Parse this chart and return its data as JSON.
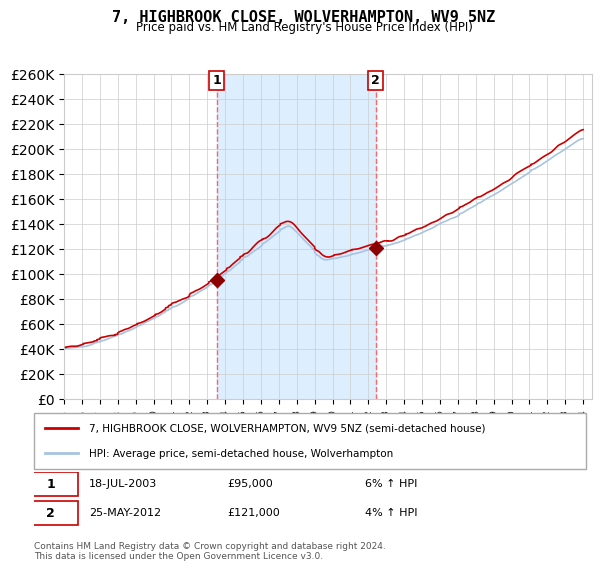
{
  "title": "7, HIGHBROOK CLOSE, WOLVERHAMPTON, WV9 5NZ",
  "subtitle": "Price paid vs. HM Land Registry's House Price Index (HPI)",
  "legend_line1": "7, HIGHBROOK CLOSE, WOLVERHAMPTON, WV9 5NZ (semi-detached house)",
  "legend_line2": "HPI: Average price, semi-detached house, Wolverhampton",
  "transaction1_date": "18-JUL-2003",
  "transaction1_price": 95000,
  "transaction1_label": "6% ↑ HPI",
  "transaction2_date": "25-MAY-2012",
  "transaction2_price": 121000,
  "transaction2_label": "4% ↑ HPI",
  "footnote": "Contains HM Land Registry data © Crown copyright and database right 2024.\nThis data is licensed under the Open Government Licence v3.0.",
  "ylim": [
    0,
    260000
  ],
  "ytick_step": 20000,
  "hpi_color": "#a8c4e0",
  "price_color": "#cc0000",
  "shading_color": "#ddeeff",
  "dashed_color": "#ff6666",
  "dot_color": "#8b0000",
  "background_color": "#ffffff",
  "grid_color": "#cccccc"
}
